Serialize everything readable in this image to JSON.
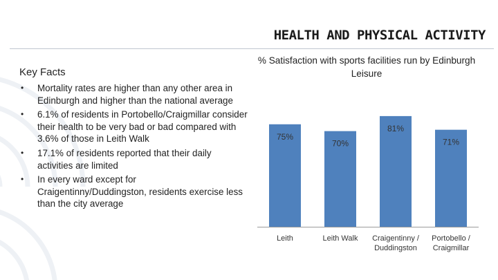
{
  "slide": {
    "title": "HEALTH AND PHYSICAL ACTIVITY"
  },
  "key_facts": {
    "heading": "Key Facts",
    "bullet_glyph": "•",
    "items": [
      "Mortality rates are higher than any other area in Edinburgh and higher than the national average",
      "6.1% of residents in Portobello/Craigmillar consider their health to be very bad or bad compared with 3.6% of those in Leith Walk",
      "17.1% of residents reported that their daily activities are limited",
      "In every ward except for Craigentinny/Duddingston, residents exercise less than the city average"
    ]
  },
  "colors": {
    "bar": "#4f81bd",
    "axis": "#9a9a9a"
  },
  "chart_data": {
    "type": "bar",
    "title": "% Satisfaction with sports facilities run by Edinburgh Leisure",
    "categories": [
      "Leith",
      "Leith Walk",
      "Craigentinny / Duddingston",
      "Portobello / Craigmillar"
    ],
    "category_lines": [
      [
        "Leith"
      ],
      [
        "Leith Walk"
      ],
      [
        "Craigentinny /",
        "Duddingston"
      ],
      [
        "Portobello /",
        "Craigmillar"
      ]
    ],
    "values": [
      75,
      70,
      81,
      71
    ],
    "data_labels": [
      "75%",
      "70%",
      "81%",
      "71%"
    ],
    "ylim": [
      0,
      85
    ],
    "grid": false,
    "legend": "none",
    "xlabel": "",
    "ylabel": ""
  }
}
